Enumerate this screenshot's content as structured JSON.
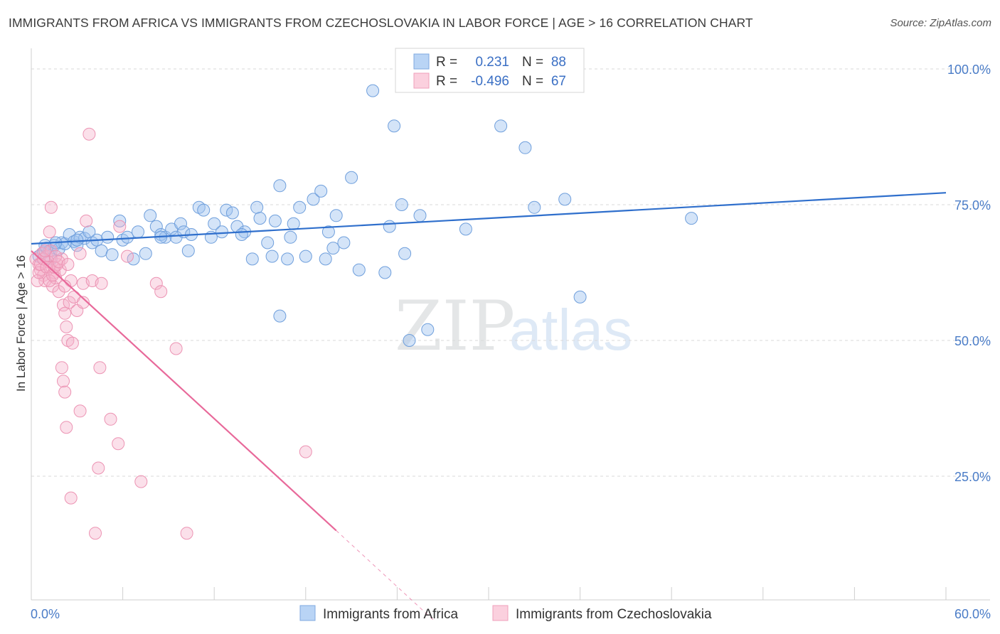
{
  "title": "IMMIGRANTS FROM AFRICA VS IMMIGRANTS FROM CZECHOSLOVAKIA IN LABOR FORCE | AGE > 16 CORRELATION CHART",
  "source": "Source: ZipAtlas.com",
  "watermark": {
    "zip": "ZIP",
    "atlas": "atlas"
  },
  "legend": {
    "r_label": "R =",
    "n_label": "N =",
    "rows": [
      {
        "r": "0.231",
        "n": "88"
      },
      {
        "r": "-0.496",
        "n": "67"
      }
    ]
  },
  "chart_data": {
    "type": "scatter",
    "ylabel": "In Labor Force | Age > 16",
    "xlim": [
      0,
      60
    ],
    "ylim": [
      0,
      105
    ],
    "x_tick_labels": [
      "0.0%",
      "60.0%"
    ],
    "y_ticks": [
      {
        "value": 100,
        "label": "100.0%"
      },
      {
        "value": 75,
        "label": "75.0%"
      },
      {
        "value": 50,
        "label": "50.0%"
      },
      {
        "value": 25,
        "label": "25.0%"
      }
    ],
    "grid": true,
    "series": [
      {
        "name": "Immigrants from Africa",
        "color": "#90b8e8",
        "line_color": "#2f6fcc",
        "trend": {
          "x0": 0,
          "y0": 67.8,
          "x1": 60,
          "y1": 77.2
        },
        "points": [
          [
            0.5,
            65.5
          ],
          [
            0.8,
            66.2
          ],
          [
            1.0,
            67.0
          ],
          [
            1.2,
            66.5
          ],
          [
            1.3,
            65.0
          ],
          [
            1.5,
            67.5
          ],
          [
            1.8,
            66.8
          ],
          [
            2.0,
            68.0
          ],
          [
            2.2,
            67.8
          ],
          [
            2.5,
            69.5
          ],
          [
            2.8,
            68.2
          ],
          [
            3.0,
            67.5
          ],
          [
            3.2,
            69.0
          ],
          [
            3.5,
            68.8
          ],
          [
            3.8,
            70.0
          ],
          [
            4.0,
            68.0
          ],
          [
            4.3,
            68.5
          ],
          [
            4.6,
            66.5
          ],
          [
            5.0,
            69.0
          ],
          [
            5.3,
            65.8
          ],
          [
            5.8,
            72.0
          ],
          [
            6.0,
            68.5
          ],
          [
            6.3,
            69.0
          ],
          [
            6.7,
            65.0
          ],
          [
            7.0,
            70.0
          ],
          [
            7.5,
            66.0
          ],
          [
            7.8,
            73.0
          ],
          [
            8.2,
            71.0
          ],
          [
            8.5,
            69.5
          ],
          [
            8.8,
            69.0
          ],
          [
            9.2,
            70.5
          ],
          [
            9.5,
            69.0
          ],
          [
            9.8,
            71.5
          ],
          [
            10.0,
            70.0
          ],
          [
            10.3,
            66.5
          ],
          [
            10.5,
            69.5
          ],
          [
            11.0,
            74.5
          ],
          [
            11.3,
            74.0
          ],
          [
            11.8,
            69.0
          ],
          [
            12.0,
            71.5
          ],
          [
            12.5,
            70.0
          ],
          [
            12.8,
            74.0
          ],
          [
            13.2,
            73.5
          ],
          [
            13.5,
            71.0
          ],
          [
            14.0,
            70.0
          ],
          [
            14.5,
            65.0
          ],
          [
            14.8,
            74.5
          ],
          [
            15.0,
            72.5
          ],
          [
            15.5,
            68.0
          ],
          [
            15.8,
            65.5
          ],
          [
            16.0,
            72.0
          ],
          [
            16.3,
            78.5
          ],
          [
            16.8,
            65.0
          ],
          [
            17.2,
            71.5
          ],
          [
            17.6,
            74.5
          ],
          [
            18.0,
            65.5
          ],
          [
            18.5,
            76.0
          ],
          [
            19.0,
            77.5
          ],
          [
            19.5,
            70.0
          ],
          [
            19.8,
            67.0
          ],
          [
            20.0,
            73.0
          ],
          [
            20.5,
            68.0
          ],
          [
            21.0,
            80.0
          ],
          [
            21.5,
            63.0
          ],
          [
            22.4,
            96.0
          ],
          [
            23.2,
            62.5
          ],
          [
            23.5,
            71.0
          ],
          [
            23.8,
            89.5
          ],
          [
            24.3,
            75.0
          ],
          [
            24.5,
            66.0
          ],
          [
            24.8,
            50.0
          ],
          [
            25.5,
            73.0
          ],
          [
            26.0,
            52.0
          ],
          [
            28.5,
            70.5
          ],
          [
            30.8,
            89.5
          ],
          [
            32.4,
            85.5
          ],
          [
            33.0,
            74.5
          ],
          [
            35.0,
            76.0
          ],
          [
            36.0,
            58.0
          ],
          [
            16.3,
            54.5
          ],
          [
            43.3,
            72.5
          ],
          [
            13.8,
            69.5
          ],
          [
            17.0,
            69.0
          ],
          [
            8.5,
            69.0
          ],
          [
            3.0,
            68.5
          ],
          [
            1.6,
            68.0
          ],
          [
            0.9,
            67.5
          ],
          [
            19.3,
            65.0
          ]
        ]
      },
      {
        "name": "Immigrants from Czechoslovakia",
        "color": "#f2a5c0",
        "line_color": "#e8699a",
        "trend": {
          "x0": 0,
          "y0": 66.5,
          "x1": 20,
          "y1": 15.0
        },
        "trend_dashed": {
          "x0": 20,
          "y0": 15.0,
          "x1": 26.5,
          "y1": -1.8
        },
        "points": [
          [
            0.3,
            65.0
          ],
          [
            0.5,
            64.0
          ],
          [
            0.6,
            63.0
          ],
          [
            0.7,
            66.0
          ],
          [
            0.8,
            62.0
          ],
          [
            0.9,
            61.0
          ],
          [
            1.0,
            65.5
          ],
          [
            1.1,
            64.5
          ],
          [
            1.2,
            63.5
          ],
          [
            1.3,
            66.5
          ],
          [
            1.4,
            60.0
          ],
          [
            1.5,
            62.5
          ],
          [
            1.6,
            61.5
          ],
          [
            1.7,
            64.0
          ],
          [
            1.8,
            59.0
          ],
          [
            1.9,
            63.0
          ],
          [
            2.0,
            65.0
          ],
          [
            2.1,
            56.5
          ],
          [
            2.2,
            55.0
          ],
          [
            2.3,
            52.5
          ],
          [
            2.4,
            50.0
          ],
          [
            2.5,
            57.0
          ],
          [
            2.6,
            61.0
          ],
          [
            2.8,
            58.0
          ],
          [
            3.0,
            55.5
          ],
          [
            3.2,
            66.0
          ],
          [
            3.4,
            57.0
          ],
          [
            3.6,
            72.0
          ],
          [
            3.8,
            88.0
          ],
          [
            1.3,
            74.5
          ],
          [
            1.2,
            70.0
          ],
          [
            2.0,
            45.0
          ],
          [
            2.1,
            42.5
          ],
          [
            2.2,
            40.5
          ],
          [
            2.3,
            34.0
          ],
          [
            2.6,
            21.0
          ],
          [
            3.2,
            37.0
          ],
          [
            4.2,
            14.5
          ],
          [
            4.4,
            26.5
          ],
          [
            4.5,
            45.0
          ],
          [
            5.2,
            35.5
          ],
          [
            5.7,
            31.0
          ],
          [
            5.8,
            71.0
          ],
          [
            6.3,
            65.5
          ],
          [
            7.2,
            24.0
          ],
          [
            8.2,
            60.5
          ],
          [
            8.5,
            59.0
          ],
          [
            9.5,
            48.5
          ],
          [
            10.2,
            14.5
          ],
          [
            18.0,
            29.5
          ],
          [
            0.4,
            61.0
          ],
          [
            0.5,
            62.5
          ],
          [
            0.6,
            64.0
          ],
          [
            0.8,
            65.0
          ],
          [
            1.0,
            63.5
          ],
          [
            1.2,
            61.0
          ],
          [
            1.4,
            62.0
          ],
          [
            1.5,
            63.5
          ],
          [
            1.6,
            65.5
          ],
          [
            1.8,
            64.5
          ],
          [
            2.2,
            60.0
          ],
          [
            2.4,
            64.0
          ],
          [
            2.7,
            49.5
          ],
          [
            3.4,
            60.5
          ],
          [
            4.0,
            61.0
          ],
          [
            4.6,
            60.5
          ],
          [
            0.9,
            66.5
          ]
        ]
      }
    ]
  },
  "bottom_legend": [
    {
      "label": "Immigrants from Africa",
      "color": "#b9d4f5",
      "stroke": "#7fa9e0"
    },
    {
      "label": "Immigrants from Czechoslovakia",
      "color": "#fbd0de",
      "stroke": "#ef9fbb"
    }
  ]
}
